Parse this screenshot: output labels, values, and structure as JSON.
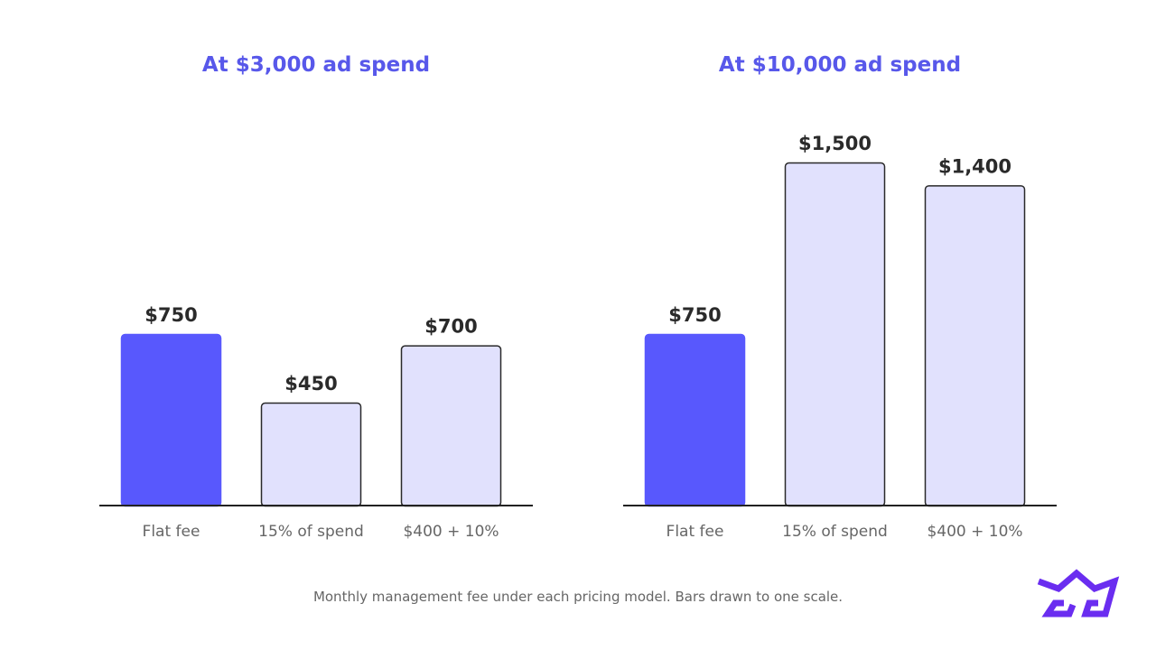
{
  "colors": {
    "accent": "#5858fd",
    "bar_light_fill": "#e1e1fd",
    "bar_stroke": "#2a2a2a",
    "axis": "#222222",
    "title": "#5858ea",
    "logo": "#6a2df0"
  },
  "caption": "Monthly management fee under each pricing model. Bars drawn to one scale.",
  "logo": {
    "icon": "crown-logo-icon"
  },
  "chart_data": [
    {
      "type": "bar",
      "title": "At $3,000 ad spend",
      "categories": [
        "Flat fee",
        "15% of spend",
        "$400 + 10%"
      ],
      "values": [
        750,
        450,
        700
      ],
      "value_labels": [
        "$750",
        "$450",
        "$700"
      ],
      "highlight_index": 0,
      "ylim": [
        0,
        1500
      ],
      "grid": false,
      "legend": "none"
    },
    {
      "type": "bar",
      "title": "At $10,000 ad spend",
      "categories": [
        "Flat fee",
        "15% of spend",
        "$400 + 10%"
      ],
      "values": [
        750,
        1500,
        1400
      ],
      "value_labels": [
        "$750",
        "$1,500",
        "$1,400"
      ],
      "highlight_index": 0,
      "ylim": [
        0,
        1500
      ],
      "grid": false,
      "legend": "none"
    }
  ]
}
